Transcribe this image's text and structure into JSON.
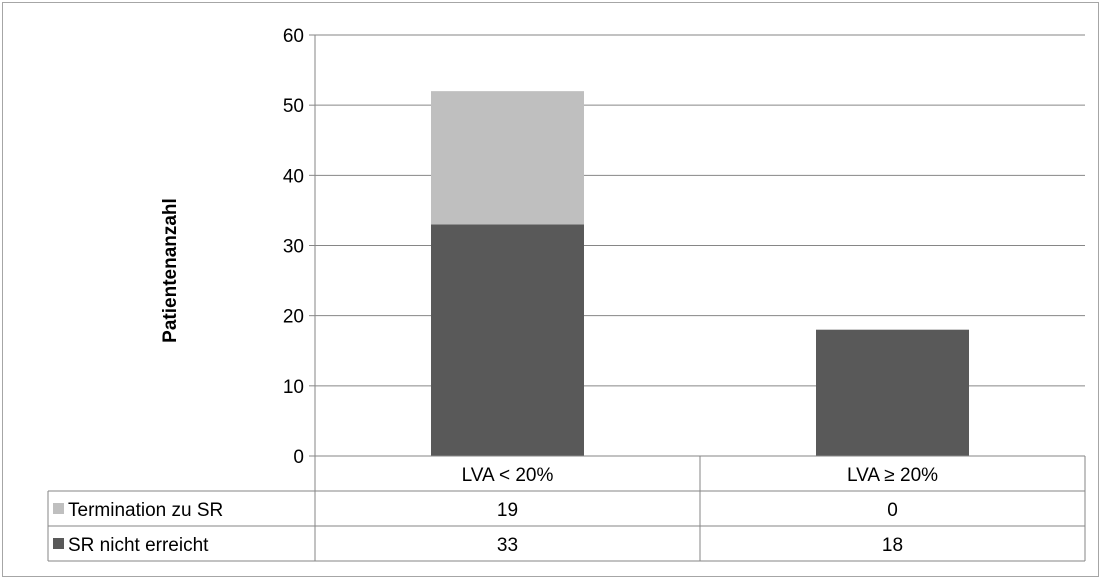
{
  "chart_data": {
    "type": "bar",
    "stacked": true,
    "categories": [
      "LVA < 20%",
      "LVA ≥ 20%"
    ],
    "series": [
      {
        "name": "SR nicht erreicht",
        "values": [
          33,
          18
        ],
        "color": "#595959"
      },
      {
        "name": "Termination zu SR",
        "values": [
          19,
          0
        ],
        "color": "#bfbfbf"
      }
    ],
    "title": "",
    "xlabel": "",
    "ylabel": "Patientenanzahl",
    "ylim": [
      0,
      60
    ],
    "yticks": [
      0,
      10,
      20,
      30,
      40,
      50,
      60
    ],
    "grid": true,
    "legend": "data-table",
    "data_table": {
      "rows": [
        {
          "label": "Termination zu SR",
          "color": "#bfbfbf",
          "values": [
            "19",
            "0"
          ]
        },
        {
          "label": "SR nicht erreicht",
          "color": "#595959",
          "values": [
            "33",
            "18"
          ]
        }
      ]
    },
    "colors": {
      "gridline": "#868686",
      "table_border": "#868686"
    }
  }
}
